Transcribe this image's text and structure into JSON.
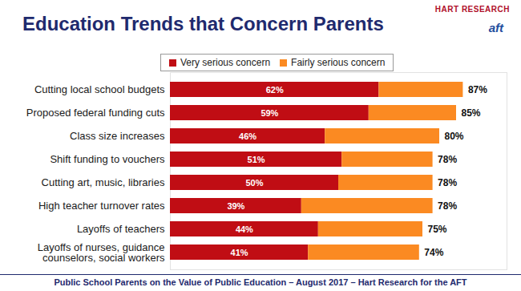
{
  "chart_data": {
    "type": "bar",
    "orientation": "horizontal",
    "stacked": true,
    "data_labels": true,
    "tick_labels": "y",
    "legend": "top",
    "title": "Education Trends that Concern Parents",
    "caption": "Public School Parents on the Value of Public Education – August 2017 – Hart Research for the AFT",
    "logos": [
      "HART RESEARCH",
      "aft"
    ],
    "xlim": [
      0,
      100
    ],
    "categories": [
      "Cutting local school budgets",
      "Proposed federal funding cuts",
      "Class size increases",
      "Shift funding to vouchers",
      "Cutting art, music, libraries",
      "High teacher turnover rates",
      "Layoffs of teachers",
      "Layoffs of nurses, guidance\ncounselors, social workers"
    ],
    "series": [
      {
        "name": "Very serious concern",
        "color": "#c00d14",
        "values": [
          62,
          59,
          46,
          51,
          50,
          39,
          44,
          41
        ],
        "value_labels": [
          "62%",
          "59%",
          "46%",
          "51%",
          "50%",
          "39%",
          "44%",
          "41%"
        ]
      },
      {
        "name": "Fairly serious concern",
        "color": "#fb8a22",
        "values": [
          25,
          26,
          34,
          27,
          28,
          39,
          31,
          33
        ]
      }
    ],
    "totals": [
      87,
      85,
      80,
      78,
      78,
      78,
      75,
      74
    ],
    "total_labels": [
      "87%",
      "85%",
      "80%",
      "78%",
      "78%",
      "78%",
      "75%",
      "74%"
    ]
  }
}
